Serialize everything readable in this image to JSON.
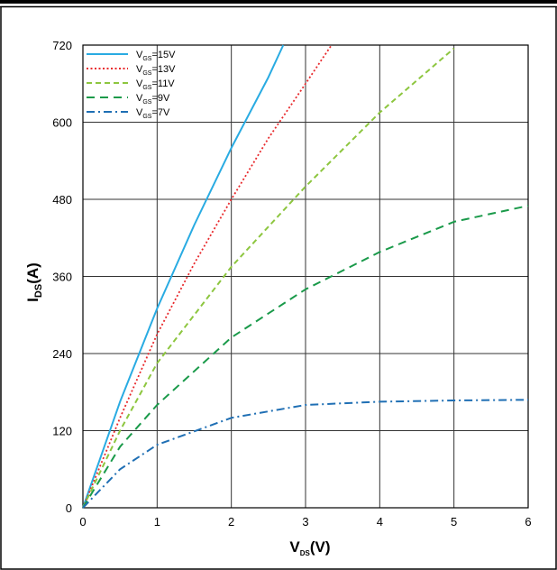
{
  "chart_data": {
    "type": "line",
    "xlabel": {
      "main": "V",
      "sub": "DS",
      "suffix": "(V)"
    },
    "ylabel": {
      "main": "I",
      "sub": "DS",
      "suffix": "(A)"
    },
    "xlim": [
      0,
      6
    ],
    "ylim": [
      0,
      720
    ],
    "xticks": [
      "0",
      "1",
      "2",
      "3",
      "4",
      "5",
      "6"
    ],
    "yticks": [
      "0",
      "120",
      "240",
      "360",
      "480",
      "600",
      "720"
    ],
    "grid": true,
    "legend_position": "top-left",
    "series": [
      {
        "name": "V_GS=15V",
        "label_main": "V",
        "label_sub": "GS",
        "label_suffix": "=15V",
        "color": "#29ABE2",
        "dash": "solid",
        "x": [
          0,
          0.5,
          1,
          1.5,
          2,
          2.5,
          2.7
        ],
        "y": [
          0,
          165,
          310,
          440,
          560,
          670,
          720
        ]
      },
      {
        "name": "V_GS=13V",
        "label_main": "V",
        "label_sub": "GS",
        "label_suffix": "=13V",
        "color": "#E8292C",
        "dash": "dotted",
        "x": [
          0,
          0.5,
          1,
          1.5,
          2,
          2.5,
          3,
          3.35
        ],
        "y": [
          0,
          140,
          270,
          380,
          480,
          575,
          660,
          720
        ]
      },
      {
        "name": "V_GS=11V",
        "label_main": "V",
        "label_sub": "GS",
        "label_suffix": "=11V",
        "color": "#8DC63F",
        "dash": "dash",
        "x": [
          0,
          0.5,
          1,
          2,
          3,
          4,
          5
        ],
        "y": [
          0,
          120,
          225,
          375,
          500,
          615,
          715
        ]
      },
      {
        "name": "V_GS=9V",
        "label_main": "V",
        "label_sub": "GS",
        "label_suffix": "=9V",
        "color": "#1A9A4A",
        "dash": "longdash",
        "x": [
          0,
          0.5,
          1,
          2,
          3,
          4,
          5,
          6
        ],
        "y": [
          0,
          95,
          160,
          265,
          340,
          398,
          445,
          470
        ]
      },
      {
        "name": "V_GS=7V",
        "label_main": "V",
        "label_sub": "GS",
        "label_suffix": "=7V",
        "color": "#1F6FB4",
        "dash": "dashdot",
        "x": [
          0,
          0.5,
          1,
          2,
          3,
          4,
          5,
          6
        ],
        "y": [
          0,
          60,
          98,
          140,
          160,
          165,
          167,
          168
        ]
      }
    ]
  }
}
